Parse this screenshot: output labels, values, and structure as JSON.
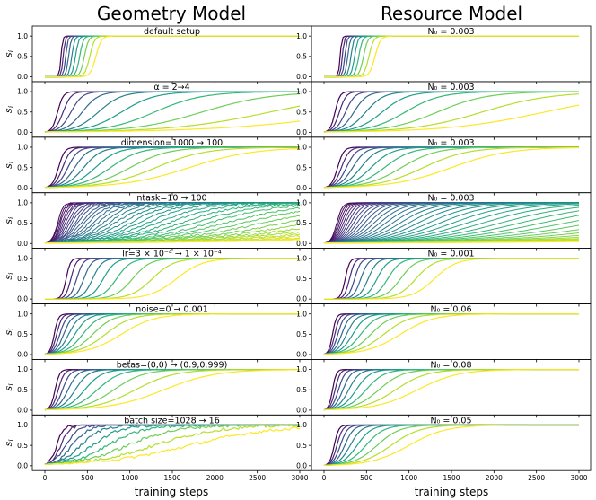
{
  "figure": {
    "column_titles": [
      "Geometry Model",
      "Resource Model"
    ]
  },
  "chart_data": {
    "type": "line",
    "x_label": "training steps",
    "y_label": "s",
    "y_label_subscript": "i",
    "xlim": [
      0,
      3000
    ],
    "ylim": [
      0,
      1
    ],
    "x_ticks": [
      0,
      500,
      1000,
      1500,
      2000,
      2500,
      3000
    ],
    "y_ticks": [
      "0.0",
      "0.5",
      "1.0"
    ],
    "colormap": [
      "#440154",
      "#482878",
      "#3e4989",
      "#31688e",
      "#26828e",
      "#1f9e89",
      "#35b779",
      "#6ece58",
      "#b5de2b",
      "#fde725"
    ],
    "rows": [
      {
        "geometry": {
          "title": "default setup",
          "n": 10,
          "t_first": 190,
          "t_last": 600,
          "k": 0.025,
          "growth": "sigmoid",
          "noise": 0
        },
        "resource": {
          "title": "N₀ = 0.003",
          "title_tex": "N_0 = 0.003",
          "n": 10,
          "t_first": 190,
          "t_last": 600,
          "k": 0.025,
          "growth": "sigmoid",
          "noise": 0
        }
      },
      {
        "geometry": {
          "title": "α = 2→4",
          "n": 10,
          "t_first": 150,
          "t_last": 3800,
          "k": 0.02,
          "growth": "exp",
          "noise": 0
        },
        "resource": {
          "title": "N₀ = 0.003",
          "title_tex": "N_0 = 0.003",
          "n": 10,
          "t_first": 130,
          "t_last": 2600,
          "k": 0.02,
          "growth": "exp",
          "noise": 0
        }
      },
      {
        "geometry": {
          "title": "dimension=1000 → 100",
          "n": 10,
          "t_first": 160,
          "t_last": 1700,
          "k": 0.007,
          "growth": "sigmoid",
          "noise": 0
        },
        "resource": {
          "title": "N₀ = 0.003",
          "title_tex": "N_0 = 0.003",
          "n": 10,
          "t_first": 160,
          "t_last": 1500,
          "k": 0.007,
          "growth": "sigmoid",
          "noise": 0
        }
      },
      {
        "geometry": {
          "title": "ntask=10 → 100",
          "n": 40,
          "t_first": 150,
          "t_last": 6000,
          "k": 0.02,
          "growth": "exp",
          "noise": 0.02
        },
        "resource": {
          "title": "N₀ = 0.003",
          "title_tex": "N_0 = 0.003",
          "n": 40,
          "t_first": 150,
          "t_last": 9000,
          "k": 0.02,
          "growth": "exp",
          "noise": 0
        }
      },
      {
        "geometry": {
          "title": "lr=3 × 10⁻⁴ → 1 × 10⁻⁴",
          "n": 10,
          "t_first": 250,
          "t_last": 1550,
          "k": 0.01,
          "growth": "sigmoid",
          "noise": 0
        },
        "resource": {
          "title": "N₀ = 0.001",
          "title_tex": "N_0 = 0.001",
          "n": 10,
          "t_first": 250,
          "t_last": 1300,
          "k": 0.01,
          "growth": "sigmoid",
          "noise": 0
        }
      },
      {
        "geometry": {
          "title": "noise=0 → 0.001",
          "n": 10,
          "t_first": 110,
          "t_last": 900,
          "k": 0.02,
          "growth": "exp",
          "noise": 0.004
        },
        "resource": {
          "title": "N₀ = 0.06",
          "title_tex": "N_0 = 0.06",
          "n": 10,
          "t_first": 100,
          "t_last": 900,
          "k": 0.02,
          "growth": "exp",
          "noise": 0
        }
      },
      {
        "geometry": {
          "title": "betas=(0,0) → (0.9,0.999)",
          "n": 10,
          "t_first": 120,
          "t_last": 1400,
          "k": 0.02,
          "growth": "exp",
          "noise": 0
        },
        "resource": {
          "title": "N₀ = 0.08",
          "title_tex": "N_0 = 0.08",
          "n": 10,
          "t_first": 100,
          "t_last": 1100,
          "k": 0.02,
          "growth": "exp",
          "noise": 0
        }
      },
      {
        "geometry": {
          "title": "batch size=1028 → 16",
          "n": 10,
          "t_first": 140,
          "t_last": 1700,
          "k": 0.006,
          "growth": "sigmoid",
          "noise": 0.035
        },
        "resource": {
          "title": "N₀ = 0.05",
          "title_tex": "N_0 = 0.05",
          "n": 10,
          "t_first": 120,
          "t_last": 1000,
          "k": 0.02,
          "growth": "exp",
          "noise": 0
        }
      }
    ]
  }
}
